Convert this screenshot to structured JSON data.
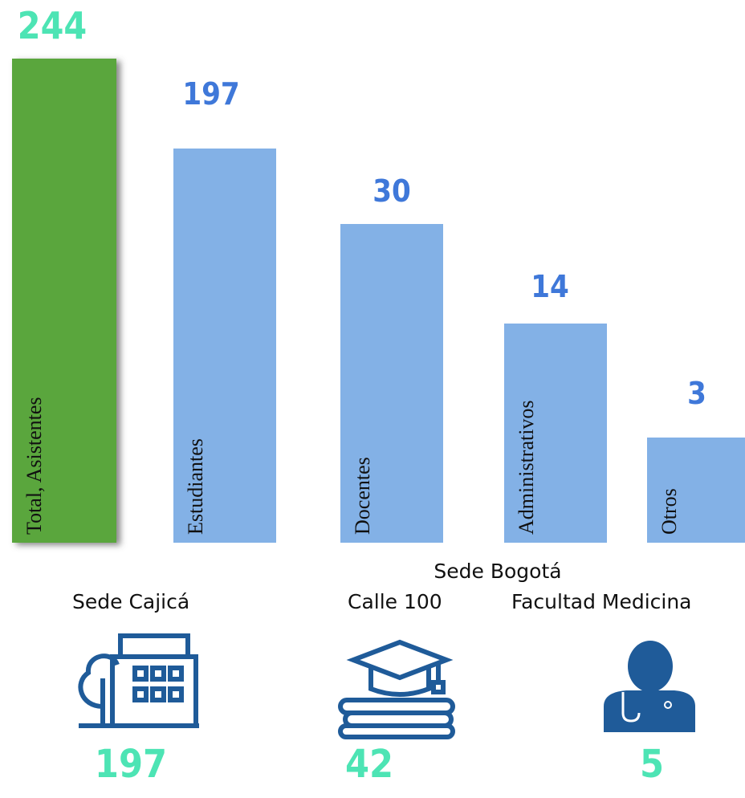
{
  "bars": [
    {
      "value": 244,
      "label": "Total, Asistentes"
    },
    {
      "value": 197,
      "label": "Estudiantes"
    },
    {
      "value": 30,
      "label": "Docentes"
    },
    {
      "value": 14,
      "label": "Administrativos"
    },
    {
      "value": 3,
      "label": "Otros"
    }
  ],
  "group_label": "Sede Bogotá",
  "sites": [
    {
      "name": "Sede Cajicá",
      "value": 197
    },
    {
      "name": "Calle 100",
      "value": 42
    },
    {
      "name": "Facultad Medicina",
      "value": 5
    }
  ]
}
